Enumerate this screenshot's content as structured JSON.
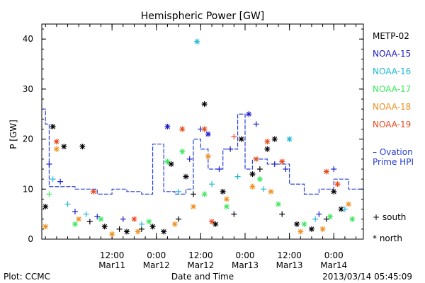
{
  "chart_data": {
    "type": "scatter",
    "title": "Hemispheric Power [GW]",
    "xlabel": "Date and Time",
    "ylabel": "P [GW]",
    "xlim": [
      "2013-03-10 17:00",
      "2013-03-14 08:00"
    ],
    "ylim": [
      0,
      43
    ],
    "yticks": [
      0,
      10,
      20,
      30,
      40
    ],
    "xticks": [
      {
        "t": "2013-03-11 12:00",
        "time": "12:00",
        "date": "Mar11"
      },
      {
        "t": "2013-03-12 00:00",
        "time": "0:00",
        "date": "Mar12"
      },
      {
        "t": "2013-03-12 12:00",
        "time": "12:00",
        "date": "Mar12"
      },
      {
        "t": "2013-03-13 00:00",
        "time": "0:00",
        "date": "Mar13"
      },
      {
        "t": "2013-03-13 12:00",
        "time": "12:00",
        "date": "Mar13"
      },
      {
        "t": "2013-03-14 00:00",
        "time": "0:00",
        "date": "Mar14"
      }
    ],
    "series": [
      {
        "name": "METP-02",
        "color": "#000000",
        "points": [
          {
            "t": "2013-03-10 18:00",
            "y": 6.5,
            "m": "*"
          },
          {
            "t": "2013-03-10 20:00",
            "y": 22.5,
            "m": "*"
          },
          {
            "t": "2013-03-10 23:00",
            "y": 18.5,
            "m": "*"
          },
          {
            "t": "2013-03-11 04:00",
            "y": 18.5,
            "m": "*"
          },
          {
            "t": "2013-03-11 06:00",
            "y": 3.5,
            "m": "+"
          },
          {
            "t": "2013-03-11 10:00",
            "y": 2.5,
            "m": "*"
          },
          {
            "t": "2013-03-11 14:00",
            "y": 2.0,
            "m": "+"
          },
          {
            "t": "2013-03-11 16:00",
            "y": 1.5,
            "m": "*"
          },
          {
            "t": "2013-03-11 20:00",
            "y": 2.0,
            "m": "+"
          },
          {
            "t": "2013-03-11 23:00",
            "y": 2.5,
            "m": "*"
          },
          {
            "t": "2013-03-12 02:00",
            "y": 1.5,
            "m": "*"
          },
          {
            "t": "2013-03-12 04:00",
            "y": 15.0,
            "m": "*"
          },
          {
            "t": "2013-03-12 06:00",
            "y": 4.0,
            "m": "+"
          },
          {
            "t": "2013-03-12 08:00",
            "y": 12.5,
            "m": "*"
          },
          {
            "t": "2013-03-12 10:00",
            "y": 9.0,
            "m": "+"
          },
          {
            "t": "2013-03-12 13:00",
            "y": 27.0,
            "m": "*"
          },
          {
            "t": "2013-03-12 16:00",
            "y": 3.0,
            "m": "*"
          },
          {
            "t": "2013-03-12 18:00",
            "y": 9.5,
            "m": "*"
          },
          {
            "t": "2013-03-12 21:00",
            "y": 5.0,
            "m": "+"
          },
          {
            "t": "2013-03-12 23:00",
            "y": 20.0,
            "m": "*"
          },
          {
            "t": "2013-03-13 02:00",
            "y": 13.0,
            "m": "*"
          },
          {
            "t": "2013-03-13 04:00",
            "y": 14.0,
            "m": "+"
          },
          {
            "t": "2013-03-13 06:00",
            "y": 18.0,
            "m": "*"
          },
          {
            "t": "2013-03-13 08:00",
            "y": 20.0,
            "m": "*"
          },
          {
            "t": "2013-03-13 10:00",
            "y": 5.0,
            "m": "+"
          },
          {
            "t": "2013-03-13 14:00",
            "y": 3.0,
            "m": "*"
          },
          {
            "t": "2013-03-13 18:00",
            "y": 2.0,
            "m": "*"
          },
          {
            "t": "2013-03-13 22:00",
            "y": 4.0,
            "m": "+"
          },
          {
            "t": "2013-03-14 00:00",
            "y": 9.5,
            "m": "*"
          },
          {
            "t": "2013-03-14 02:00",
            "y": 6.0,
            "m": "*"
          }
        ]
      },
      {
        "name": "NOAA-15",
        "color": "#1b1bc8",
        "points": [
          {
            "t": "2013-03-10 19:00",
            "y": 15.0,
            "m": "+"
          },
          {
            "t": "2013-03-10 22:00",
            "y": 11.5,
            "m": "+"
          },
          {
            "t": "2013-03-11 02:00",
            "y": 5.5,
            "m": "+"
          },
          {
            "t": "2013-03-11 08:00",
            "y": 4.5,
            "m": "+"
          },
          {
            "t": "2013-03-11 15:00",
            "y": 4.0,
            "m": "+"
          },
          {
            "t": "2013-03-12 03:00",
            "y": 22.5,
            "m": "*"
          },
          {
            "t": "2013-03-12 09:00",
            "y": 16.0,
            "m": "+"
          },
          {
            "t": "2013-03-12 12:00",
            "y": 22.0,
            "m": "+"
          },
          {
            "t": "2013-03-12 14:00",
            "y": 21.0,
            "m": "*"
          },
          {
            "t": "2013-03-12 17:00",
            "y": 14.0,
            "m": "+"
          },
          {
            "t": "2013-03-12 20:00",
            "y": 18.0,
            "m": "+"
          },
          {
            "t": "2013-03-13 01:00",
            "y": 25.0,
            "m": "*"
          },
          {
            "t": "2013-03-13 03:00",
            "y": 23.0,
            "m": "+"
          },
          {
            "t": "2013-03-13 08:00",
            "y": 15.0,
            "m": "+"
          },
          {
            "t": "2013-03-13 11:00",
            "y": 14.0,
            "m": "+"
          },
          {
            "t": "2013-03-13 20:00",
            "y": 5.0,
            "m": "+"
          },
          {
            "t": "2013-03-14 00:00",
            "y": 14.0,
            "m": "+"
          }
        ]
      },
      {
        "name": "NOAA-16",
        "color": "#1fb8d8",
        "points": [
          {
            "t": "2013-03-10 20:00",
            "y": 12.0,
            "m": "+"
          },
          {
            "t": "2013-03-11 00:00",
            "y": 7.0,
            "m": "+"
          },
          {
            "t": "2013-03-11 05:00",
            "y": 5.0,
            "m": "+"
          },
          {
            "t": "2013-03-11 20:00",
            "y": 3.0,
            "m": "+"
          },
          {
            "t": "2013-03-12 06:00",
            "y": 9.5,
            "m": "+"
          },
          {
            "t": "2013-03-12 11:00",
            "y": 39.5,
            "m": "*"
          },
          {
            "t": "2013-03-12 15:00",
            "y": 11.0,
            "m": "+"
          },
          {
            "t": "2013-03-12 22:00",
            "y": 12.5,
            "m": "+"
          },
          {
            "t": "2013-03-13 05:00",
            "y": 10.0,
            "m": "+"
          },
          {
            "t": "2013-03-13 12:00",
            "y": 20.0,
            "m": "*"
          },
          {
            "t": "2013-03-13 19:00",
            "y": 4.0,
            "m": "+"
          },
          {
            "t": "2013-03-14 03:00",
            "y": 6.0,
            "m": "+"
          }
        ]
      },
      {
        "name": "NOAA-17",
        "color": "#3ce85c",
        "points": [
          {
            "t": "2013-03-10 19:00",
            "y": 9.0,
            "m": "+"
          },
          {
            "t": "2013-03-11 02:00",
            "y": 3.0,
            "m": "*"
          },
          {
            "t": "2013-03-11 09:00",
            "y": 4.0,
            "m": "*"
          },
          {
            "t": "2013-03-11 22:00",
            "y": 3.5,
            "m": "*"
          },
          {
            "t": "2013-03-12 03:00",
            "y": 15.5,
            "m": "*"
          },
          {
            "t": "2013-03-12 07:00",
            "y": 17.5,
            "m": "*"
          },
          {
            "t": "2013-03-12 13:00",
            "y": 9.0,
            "m": "*"
          },
          {
            "t": "2013-03-12 19:00",
            "y": 6.5,
            "m": "*"
          },
          {
            "t": "2013-03-13 04:00",
            "y": 12.0,
            "m": "*"
          },
          {
            "t": "2013-03-13 09:00",
            "y": 7.0,
            "m": "*"
          },
          {
            "t": "2013-03-13 16:00",
            "y": 3.0,
            "m": "*"
          },
          {
            "t": "2013-03-13 23:00",
            "y": 4.5,
            "m": "*"
          },
          {
            "t": "2013-03-14 05:00",
            "y": 4.0,
            "m": "*"
          }
        ]
      },
      {
        "name": "NOAA-18",
        "color": "#f09020",
        "points": [
          {
            "t": "2013-03-10 18:00",
            "y": 2.5,
            "m": "*"
          },
          {
            "t": "2013-03-10 21:00",
            "y": 18.0,
            "m": "*"
          },
          {
            "t": "2013-03-11 03:00",
            "y": 4.0,
            "m": "*"
          },
          {
            "t": "2013-03-11 12:00",
            "y": 1.0,
            "m": "*"
          },
          {
            "t": "2013-03-11 19:00",
            "y": 1.5,
            "m": "*"
          },
          {
            "t": "2013-03-12 05:00",
            "y": 3.0,
            "m": "*"
          },
          {
            "t": "2013-03-12 10:00",
            "y": 6.5,
            "m": "*"
          },
          {
            "t": "2013-03-12 14:00",
            "y": 16.5,
            "m": "*"
          },
          {
            "t": "2013-03-12 19:00",
            "y": 8.0,
            "m": "*"
          },
          {
            "t": "2013-03-13 02:00",
            "y": 10.5,
            "m": "*"
          },
          {
            "t": "2013-03-13 07:00",
            "y": 9.5,
            "m": "*"
          },
          {
            "t": "2013-03-13 15:00",
            "y": 1.5,
            "m": "*"
          },
          {
            "t": "2013-03-13 21:00",
            "y": 2.0,
            "m": "*"
          },
          {
            "t": "2013-03-14 04:00",
            "y": 7.0,
            "m": "*"
          }
        ]
      },
      {
        "name": "NOAA-19",
        "color": "#e84a1c",
        "points": [
          {
            "t": "2013-03-10 21:00",
            "y": 19.5,
            "m": "*"
          },
          {
            "t": "2013-03-11 07:00",
            "y": 9.5,
            "m": "*"
          },
          {
            "t": "2013-03-11 18:00",
            "y": 4.0,
            "m": "*"
          },
          {
            "t": "2013-03-12 07:00",
            "y": 22.0,
            "m": "*"
          },
          {
            "t": "2013-03-12 13:00",
            "y": 22.0,
            "m": "*"
          },
          {
            "t": "2013-03-12 15:00",
            "y": 3.5,
            "m": "*"
          },
          {
            "t": "2013-03-12 21:00",
            "y": 20.5,
            "m": "+"
          },
          {
            "t": "2013-03-13 03:00",
            "y": 16.0,
            "m": "*"
          },
          {
            "t": "2013-03-13 06:00",
            "y": 19.5,
            "m": "*"
          },
          {
            "t": "2013-03-13 10:00",
            "y": 15.5,
            "m": "*"
          },
          {
            "t": "2013-03-13 22:00",
            "y": 13.5,
            "m": "*"
          },
          {
            "t": "2013-03-14 01:00",
            "y": 11.0,
            "m": "*"
          }
        ]
      }
    ],
    "ovation": {
      "name": "Ovation Prime HPI",
      "color": "#2840d8",
      "t": [
        "2013-03-10 17:00",
        "2013-03-10 18:00",
        "2013-03-10 19:00",
        "2013-03-11 02:00",
        "2013-03-11 08:00",
        "2013-03-11 12:00",
        "2013-03-11 16:00",
        "2013-03-11 20:00",
        "2013-03-11 23:00",
        "2013-03-12 02:00",
        "2013-03-12 05:00",
        "2013-03-12 08:00",
        "2013-03-12 10:00",
        "2013-03-12 12:00",
        "2013-03-12 14:00",
        "2013-03-12 16:00",
        "2013-03-12 18:00",
        "2013-03-12 20:00",
        "2013-03-12 22:00",
        "2013-03-13 00:00",
        "2013-03-13 02:00",
        "2013-03-13 06:00",
        "2013-03-13 09:00",
        "2013-03-13 12:00",
        "2013-03-13 16:00",
        "2013-03-13 20:00",
        "2013-03-14 00:00",
        "2013-03-14 04:00",
        "2013-03-14 08:00"
      ],
      "y": [
        26,
        23,
        10.5,
        10,
        9,
        10,
        9.5,
        9,
        19,
        9.5,
        9,
        10,
        20,
        18,
        14,
        14,
        18,
        18,
        25,
        14,
        16,
        15,
        15,
        11,
        9,
        10,
        12,
        10,
        10
      ]
    },
    "legend": {
      "position": "right",
      "ovation_label_lines": [
        "– Ovation",
        "Prime HPI"
      ]
    },
    "marker_legend": [
      {
        "symbol": "+",
        "label": "south"
      },
      {
        "symbol": "*",
        "label": "north"
      }
    ],
    "grid": false
  },
  "footer": {
    "left": "Plot: CCMC",
    "center": "Date and Time",
    "right": "2013/03/14 05:45:09"
  }
}
